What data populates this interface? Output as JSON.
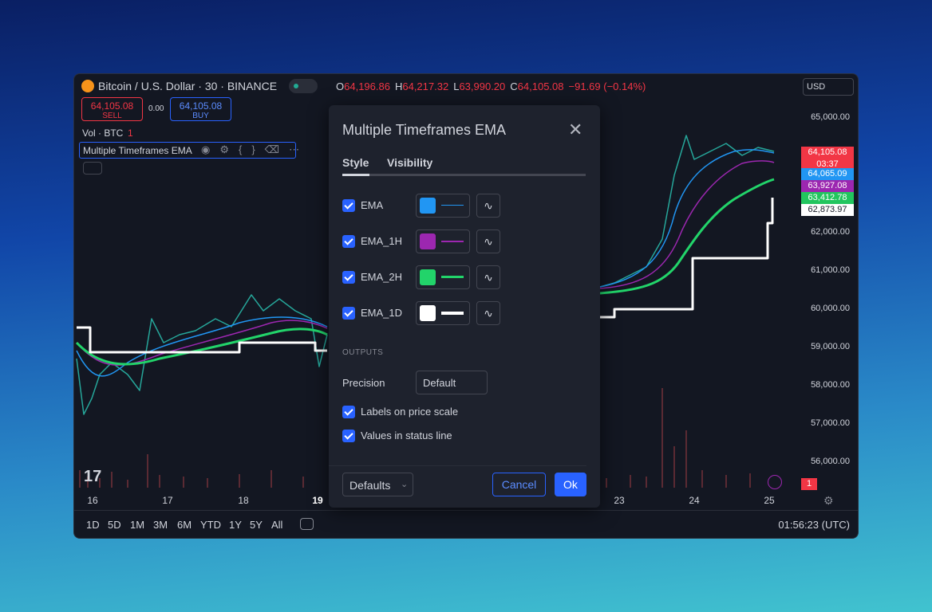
{
  "header": {
    "symbol": "Bitcoin / U.S. Dollar · 30 · BINANCE",
    "ohlc": [
      {
        "key": "O",
        "value": "64,196.86"
      },
      {
        "key": "H",
        "value": "64,217.32"
      },
      {
        "key": "L",
        "value": "63,990.20"
      },
      {
        "key": "C",
        "value": "64,105.08"
      }
    ],
    "change": "−91.69 (−0.14%)",
    "sell": {
      "price": "64,105.08",
      "label": "SELL"
    },
    "spread": "0.00",
    "buy": {
      "price": "64,105.08",
      "label": "BUY"
    },
    "currency": "USD",
    "volume": {
      "label": "Vol · BTC",
      "value": "1"
    },
    "indicator": "Multiple Timeframes EMA"
  },
  "price_axis": {
    "ticks": [
      {
        "label": "65,000.00",
        "y": 0
      },
      {
        "label": "62,000.00",
        "y": 3
      },
      {
        "label": "61,000.00",
        "y": 4
      },
      {
        "label": "60,000.00",
        "y": 5
      },
      {
        "label": "59,000.00",
        "y": 6
      },
      {
        "label": "58,000.00",
        "y": 7
      },
      {
        "label": "57,000.00",
        "y": 8
      },
      {
        "label": "56,000.00",
        "y": 9
      }
    ],
    "labels": [
      {
        "value": "64,105.08",
        "sub": "03:37",
        "color": "#f23645"
      },
      {
        "value": "64,065.09",
        "color": "#2196f3"
      },
      {
        "value": "63,927.08",
        "color": "#9c27b0"
      },
      {
        "value": "63,412.78",
        "color": "#22c55e"
      },
      {
        "value": "62,873.97",
        "color": "#ffffff"
      }
    ],
    "bar_count": "1"
  },
  "date_axis": [
    "16",
    "17",
    "18",
    "19",
    "23",
    "24",
    "25"
  ],
  "bottom_bar": {
    "ranges": [
      "1D",
      "5D",
      "1M",
      "3M",
      "6M",
      "YTD",
      "1Y",
      "5Y",
      "All"
    ],
    "time": "01:56:23 (UTC)"
  },
  "dialog": {
    "title": "Multiple Timeframes EMA",
    "tabs": [
      "Style",
      "Visibility"
    ],
    "plots": [
      {
        "name": "EMA",
        "color": "#2196f3"
      },
      {
        "name": "EMA_1H",
        "color": "#9c27b0"
      },
      {
        "name": "EMA_2H",
        "color": "#22d46a"
      },
      {
        "name": "EMA_1D",
        "color": "#ffffff"
      }
    ],
    "section": "OUTPUTS",
    "precision": {
      "label": "Precision",
      "value": "Default"
    },
    "options": [
      "Labels on price scale",
      "Values in status line"
    ],
    "footer": {
      "defaults": "Defaults",
      "cancel": "Cancel",
      "ok": "Ok"
    }
  }
}
